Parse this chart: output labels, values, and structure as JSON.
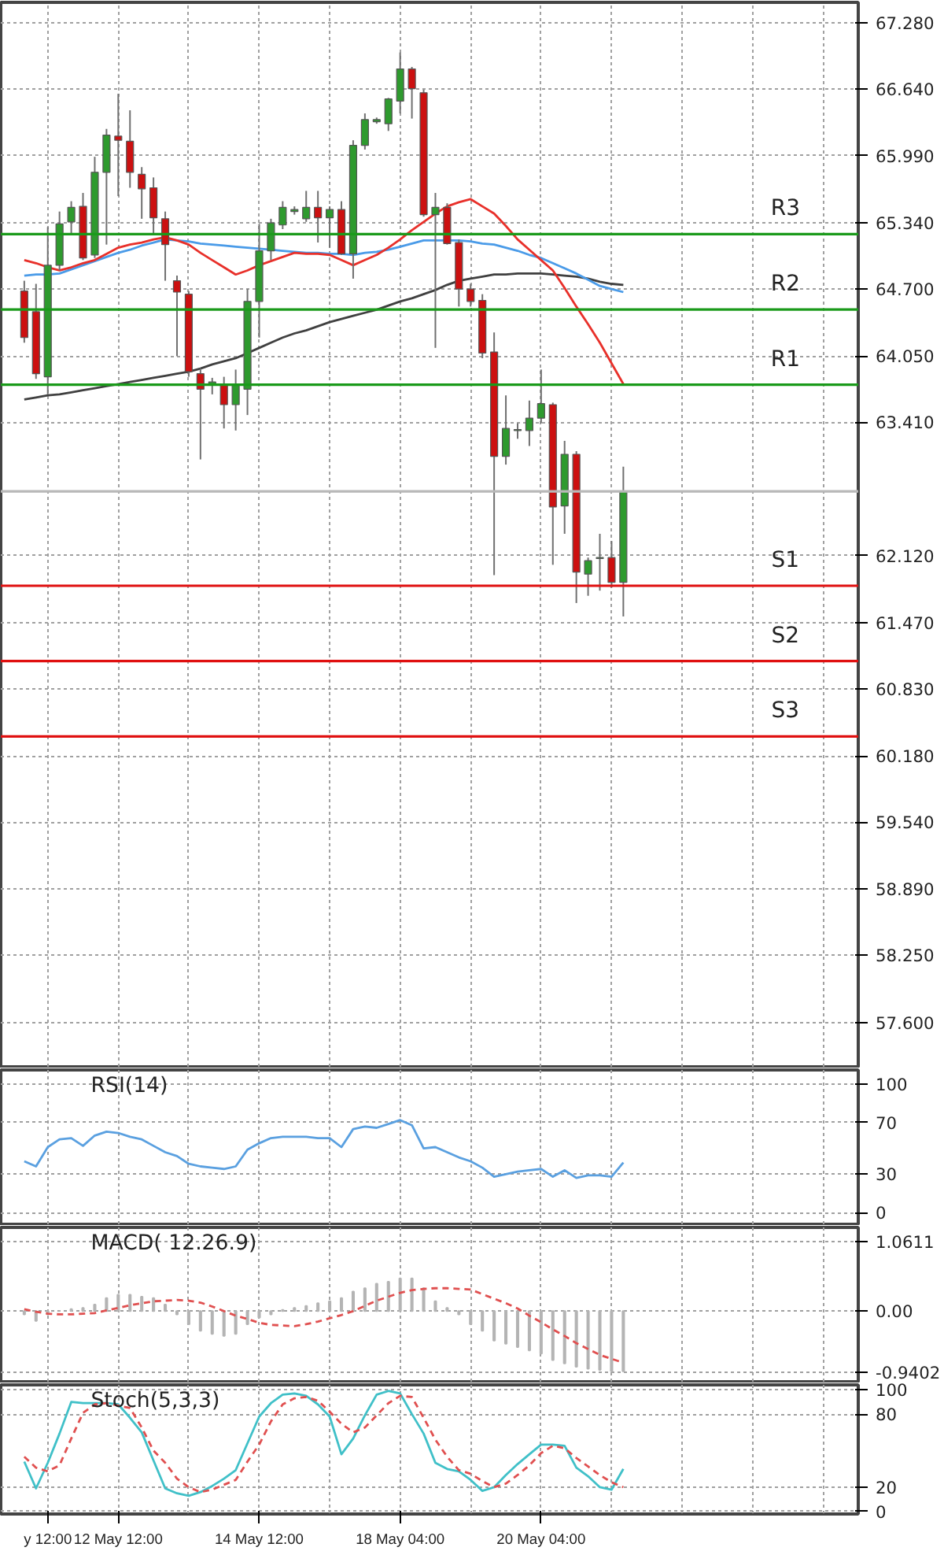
{
  "chart_data": [
    {
      "type": "candlestick",
      "categories": [
        null,
        null,
        null,
        null,
        null,
        null,
        null,
        null,
        null,
        null,
        null,
        null,
        null,
        null,
        null,
        null,
        null,
        null,
        null,
        null,
        null,
        null,
        null,
        null,
        null,
        null,
        null,
        null,
        null,
        null,
        null,
        null,
        null,
        null,
        null,
        null,
        null,
        null,
        null,
        null,
        null,
        null,
        null,
        null,
        null,
        null,
        null,
        null,
        null,
        null,
        null,
        null
      ],
      "ohlc": [
        [
          64.68,
          64.78,
          64.18,
          64.23
        ],
        [
          64.48,
          64.75,
          63.83,
          63.88
        ],
        [
          63.85,
          65.3,
          63.68,
          64.93
        ],
        [
          64.93,
          65.45,
          64.88,
          65.33
        ],
        [
          65.35,
          65.55,
          65.23,
          65.49
        ],
        [
          65.5,
          65.63,
          64.98,
          65.0
        ],
        [
          65.03,
          65.98,
          65.0,
          65.83
        ],
        [
          65.83,
          66.25,
          65.13,
          66.19
        ],
        [
          66.18,
          66.59,
          65.6,
          66.14
        ],
        [
          66.13,
          66.43,
          65.68,
          65.83
        ],
        [
          65.81,
          65.88,
          65.38,
          65.67
        ],
        [
          65.68,
          65.78,
          65.23,
          65.39
        ],
        [
          65.38,
          65.45,
          64.78,
          65.13
        ],
        [
          64.78,
          64.83,
          64.05,
          64.67
        ],
        [
          64.65,
          64.68,
          63.85,
          63.9
        ],
        [
          63.88,
          63.93,
          63.05,
          63.73
        ],
        [
          63.78,
          63.84,
          63.68,
          63.8
        ],
        [
          63.78,
          63.85,
          63.35,
          63.58
        ],
        [
          63.58,
          63.92,
          63.33,
          63.78
        ],
        [
          63.73,
          64.7,
          63.48,
          64.58
        ],
        [
          64.58,
          65.33,
          64.23,
          65.07
        ],
        [
          65.07,
          65.38,
          64.98,
          65.34
        ],
        [
          65.32,
          65.55,
          65.28,
          65.49
        ],
        [
          65.45,
          65.5,
          65.42,
          65.47
        ],
        [
          65.38,
          65.65,
          65.35,
          65.49
        ],
        [
          65.49,
          65.65,
          65.15,
          65.39
        ],
        [
          65.39,
          65.5,
          65.1,
          65.47
        ],
        [
          65.47,
          65.55,
          65.03,
          65.04
        ],
        [
          65.04,
          66.14,
          64.8,
          66.09
        ],
        [
          66.09,
          66.4,
          66.05,
          66.34
        ],
        [
          66.32,
          66.36,
          66.3,
          66.34
        ],
        [
          66.3,
          66.55,
          66.23,
          66.54
        ],
        [
          66.52,
          66.99,
          66.4,
          66.83
        ],
        [
          66.83,
          66.85,
          66.35,
          66.64
        ],
        [
          66.6,
          66.63,
          65.4,
          65.42
        ],
        [
          65.42,
          65.63,
          64.13,
          65.49
        ],
        [
          65.49,
          65.53,
          65.13,
          65.14
        ],
        [
          65.15,
          65.18,
          64.53,
          64.7
        ],
        [
          64.7,
          64.75,
          64.53,
          64.58
        ],
        [
          64.59,
          64.65,
          64.03,
          64.08
        ],
        [
          64.09,
          64.28,
          61.93,
          63.08
        ],
        [
          63.08,
          63.67,
          63.0,
          63.35
        ],
        [
          63.33,
          63.4,
          63.25,
          63.34
        ],
        [
          63.33,
          63.62,
          63.18,
          63.45
        ],
        [
          63.45,
          63.92,
          63.4,
          63.59
        ],
        [
          63.58,
          63.6,
          62.03,
          62.59
        ],
        [
          62.6,
          63.23,
          62.33,
          63.1
        ],
        [
          63.1,
          63.13,
          61.66,
          61.96
        ],
        [
          61.94,
          62.1,
          61.73,
          62.07
        ],
        [
          62.09,
          62.33,
          61.78,
          62.1
        ],
        [
          62.1,
          62.26,
          61.81,
          61.86
        ],
        [
          61.86,
          62.98,
          61.53,
          62.74
        ]
      ],
      "colors": [
        "#cc1010",
        "#cc1010",
        "#2e9a2e",
        "#2e9a2e",
        "#2e9a2e",
        "#cc1010",
        "#2e9a2e",
        "#2e9a2e",
        "#cc1010",
        "#cc1010",
        "#cc1010",
        "#cc1010",
        "#cc1010",
        "#cc1010",
        "#cc1010",
        "#cc1010",
        "#2e9a2e",
        "#cc1010",
        "#2e9a2e",
        "#2e9a2e",
        "#2e9a2e",
        "#2e9a2e",
        "#2e9a2e",
        "#2e9a2e",
        "#2e9a2e",
        "#cc1010",
        "#2e9a2e",
        "#cc1010",
        "#2e9a2e",
        "#2e9a2e",
        "#2e9a2e",
        "#2e9a2e",
        "#2e9a2e",
        "#cc1010",
        "#cc1010",
        "#2e9a2e",
        "#cc1010",
        "#cc1010",
        "#cc1010",
        "#cc1010",
        "#cc1010",
        "#2e9a2e",
        "#2e9a2e",
        "#2e9a2e",
        "#2e9a2e",
        "#cc1010",
        "#2e9a2e",
        "#cc1010",
        "#2e9a2e",
        "#2e9a2e",
        "#cc1010",
        "#2e9a2e"
      ],
      "series": [
        {
          "type": "line",
          "color": "#404040",
          "values": [
            63.63,
            63.65,
            63.67,
            63.68,
            63.7,
            63.72,
            63.74,
            63.76,
            63.78,
            63.8,
            63.82,
            63.84,
            63.86,
            63.88,
            63.9,
            63.93,
            63.97,
            64.0,
            64.03,
            64.08,
            64.13,
            64.18,
            64.23,
            64.27,
            64.3,
            64.34,
            64.38,
            64.41,
            64.44,
            64.47,
            64.5,
            64.54,
            64.58,
            64.61,
            64.65,
            64.69,
            64.74,
            64.78,
            64.8,
            64.82,
            64.84,
            64.84,
            64.85,
            64.85,
            64.85,
            64.84,
            64.83,
            64.82,
            64.8,
            64.77,
            64.75,
            64.74
          ]
        },
        {
          "type": "line",
          "color": "#4a9be8",
          "values": [
            64.83,
            64.84,
            64.84,
            64.85,
            64.89,
            64.93,
            64.97,
            65.01,
            65.05,
            65.08,
            65.12,
            65.15,
            65.18,
            65.17,
            65.16,
            65.14,
            65.13,
            65.12,
            65.11,
            65.1,
            65.09,
            65.08,
            65.07,
            65.06,
            65.05,
            65.05,
            65.04,
            65.04,
            65.03,
            65.05,
            65.06,
            65.08,
            65.11,
            65.14,
            65.17,
            65.17,
            65.17,
            65.17,
            65.16,
            65.14,
            65.13,
            65.1,
            65.07,
            65.03,
            65.0,
            64.95,
            64.9,
            64.85,
            64.79,
            64.73,
            64.7,
            64.67
          ]
        },
        {
          "type": "line",
          "color": "#e8302a",
          "values": [
            64.98,
            64.95,
            64.91,
            64.88,
            64.91,
            64.95,
            64.98,
            65.04,
            65.1,
            65.13,
            65.15,
            65.18,
            65.2,
            65.17,
            65.13,
            65.05,
            64.98,
            64.91,
            64.84,
            64.88,
            64.93,
            64.97,
            65.01,
            65.05,
            65.04,
            65.04,
            65.03,
            64.98,
            64.93,
            64.98,
            65.03,
            65.1,
            65.18,
            65.27,
            65.35,
            65.43,
            65.5,
            65.54,
            65.57,
            65.5,
            65.43,
            65.31,
            65.18,
            65.08,
            64.98,
            64.88,
            64.71,
            64.53,
            64.36,
            64.18,
            63.98,
            63.78
          ]
        }
      ],
      "ylim": [
        57.17,
        67.475
      ],
      "yticks": [
        {
          "value": 67.28,
          "label": "67.280"
        },
        {
          "value": 66.64,
          "label": "66.640"
        },
        {
          "value": 65.99,
          "label": "65.990"
        },
        {
          "value": 65.34,
          "label": "65.340"
        },
        {
          "value": 64.7,
          "label": "64.700"
        },
        {
          "value": 64.05,
          "label": "64.050"
        },
        {
          "value": 63.41,
          "label": "63.410"
        },
        {
          "value": 62.12,
          "label": "62.120"
        },
        {
          "value": 61.47,
          "label": "61.470"
        },
        {
          "value": 60.83,
          "label": "60.830"
        },
        {
          "value": 60.18,
          "label": "60.180"
        },
        {
          "value": 59.54,
          "label": "59.540"
        },
        {
          "value": 58.89,
          "label": "58.890"
        },
        {
          "value": 58.25,
          "label": "58.250"
        },
        {
          "value": 57.6,
          "label": "57.600"
        }
      ],
      "ref_lines": [
        {
          "axis": "y",
          "value": 65.232,
          "label": "R3",
          "color": "#1a9a1a"
        },
        {
          "axis": "y",
          "value": 64.502,
          "label": "R2",
          "color": "#1a9a1a"
        },
        {
          "axis": "y",
          "value": 63.773,
          "label": "R1",
          "color": "#1a9a1a"
        },
        {
          "axis": "y",
          "value": 62.74,
          "label": null,
          "color": "#b8b8b8"
        },
        {
          "axis": "y",
          "value": 61.827,
          "label": "S1",
          "color": "#e01010"
        },
        {
          "axis": "y",
          "value": 61.098,
          "label": "S2",
          "color": "#e01010"
        },
        {
          "axis": "y",
          "value": 60.368,
          "label": "S3",
          "color": "#e01010"
        }
      ],
      "grid": true,
      "tick_labels": "y"
    },
    {
      "type": "line",
      "title": "RSI(14)",
      "categories": [
        null,
        null,
        null,
        null,
        null,
        null,
        null,
        null,
        null,
        null,
        null,
        null,
        null,
        null,
        null,
        null,
        null,
        null,
        null,
        null,
        null,
        null,
        null,
        null,
        null,
        null,
        null,
        null,
        null,
        null,
        null,
        null,
        null,
        null,
        null,
        null,
        null,
        null,
        null,
        null,
        null,
        null,
        null,
        null,
        null,
        null,
        null,
        null,
        null,
        null,
        null,
        null
      ],
      "series": [
        {
          "color": "#5aa0e0",
          "values": [
            40,
            36,
            51,
            57,
            58,
            52,
            60,
            63,
            62,
            59,
            57,
            52,
            47,
            44,
            38,
            36,
            35,
            34,
            36,
            49,
            54,
            58,
            59,
            59,
            59,
            58,
            58,
            51,
            65,
            67,
            66,
            69,
            72,
            68,
            50,
            51,
            47,
            43,
            40,
            35,
            28,
            30,
            32,
            33,
            34,
            28,
            33,
            27,
            29,
            29,
            28,
            39
          ]
        }
      ],
      "ylim": [
        -9,
        111
      ],
      "yticks": [
        100,
        70,
        30,
        0
      ],
      "grid": true,
      "tick_labels": "y"
    },
    {
      "type": "bar",
      "title": "MACD( 12.26.9)",
      "categories": [
        null,
        null,
        null,
        null,
        null,
        null,
        null,
        null,
        null,
        null,
        null,
        null,
        null,
        null,
        null,
        null,
        null,
        null,
        null,
        null,
        null,
        null,
        null,
        null,
        null,
        null,
        null,
        null,
        null,
        null,
        null,
        null,
        null,
        null,
        null,
        null,
        null,
        null,
        null,
        null,
        null,
        null,
        null,
        null,
        null,
        null,
        null,
        null,
        null,
        null,
        null,
        null
      ],
      "series": [
        {
          "type": "bar",
          "color": "#b4b4b4",
          "values": [
            -0.05,
            -0.15,
            -0.05,
            0.0,
            0.03,
            0.05,
            0.1,
            0.2,
            0.25,
            0.25,
            0.22,
            0.2,
            0.1,
            -0.05,
            -0.2,
            -0.3,
            -0.35,
            -0.38,
            -0.35,
            -0.2,
            -0.1,
            -0.05,
            0.02,
            0.05,
            0.08,
            0.12,
            0.15,
            0.2,
            0.3,
            0.35,
            0.42,
            0.45,
            0.5,
            0.5,
            0.35,
            0.15,
            0.05,
            -0.05,
            -0.2,
            -0.3,
            -0.45,
            -0.5,
            -0.55,
            -0.6,
            -0.65,
            -0.75,
            -0.8,
            -0.85,
            -0.88,
            -0.9,
            -0.92,
            -0.92
          ]
        },
        {
          "type": "line",
          "color": "#e05050",
          "line_style": "dashed",
          "values": [
            0.03,
            -0.01,
            -0.04,
            -0.05,
            -0.05,
            -0.04,
            -0.03,
            0.01,
            0.05,
            0.09,
            0.12,
            0.15,
            0.16,
            0.17,
            0.16,
            0.13,
            0.07,
            0.0,
            -0.07,
            -0.12,
            -0.18,
            -0.21,
            -0.22,
            -0.23,
            -0.2,
            -0.16,
            -0.11,
            -0.06,
            0.0,
            0.08,
            0.16,
            0.22,
            0.28,
            0.32,
            0.34,
            0.35,
            0.35,
            0.34,
            0.33,
            0.26,
            0.19,
            0.12,
            0.04,
            -0.07,
            -0.17,
            -0.28,
            -0.38,
            -0.49,
            -0.58,
            -0.67,
            -0.73,
            -0.79
          ]
        }
      ],
      "ylim": [
        -1.08,
        1.28
      ],
      "yticks": [
        1.0611,
        {
          "value": 0,
          "label": "0.00"
        },
        -0.9402
      ],
      "grid": true,
      "tick_labels": "y"
    },
    {
      "type": "line",
      "title": "Stoch(5,3,3)",
      "categories": [
        null,
        null,
        "y 12:00",
        null,
        null,
        null,
        null,
        null,
        "12 May 12:00",
        null,
        null,
        null,
        null,
        null,
        null,
        null,
        null,
        null,
        null,
        null,
        "14 May 12:00",
        null,
        null,
        null,
        null,
        null,
        null,
        null,
        null,
        null,
        null,
        null,
        "18 May 04:00",
        null,
        null,
        null,
        null,
        null,
        null,
        null,
        null,
        null,
        null,
        null,
        "20 May 04:00",
        null,
        null,
        null,
        null,
        null,
        null,
        null
      ],
      "series": [
        {
          "color": "#40c0c8",
          "values": [
            41,
            19,
            40,
            64,
            90,
            89,
            89,
            89,
            88,
            77,
            65,
            42,
            19,
            15,
            13,
            16,
            21,
            27,
            34,
            56,
            78,
            89,
            96,
            97,
            95,
            88,
            78,
            47,
            60,
            79,
            96,
            99,
            97,
            80,
            64,
            40,
            35,
            33,
            26,
            17,
            20,
            30,
            39,
            47,
            55,
            55,
            54,
            36,
            29,
            20,
            18,
            35
          ]
        },
        {
          "color": "#e05050",
          "line_style": "dashed",
          "values": [
            45,
            36,
            33,
            38,
            60,
            81,
            88,
            89,
            87,
            85,
            69,
            50,
            40,
            27,
            20,
            16,
            18,
            22,
            26,
            41,
            55,
            74,
            88,
            93,
            94,
            91,
            82,
            72,
            65,
            69,
            79,
            89,
            95,
            94,
            77,
            59,
            45,
            34,
            31,
            25,
            20,
            23,
            30,
            38,
            48,
            54,
            52,
            44,
            37,
            30,
            24,
            20
          ]
        }
      ],
      "ylim": [
        -2,
        104
      ],
      "yticks": [
        100,
        80,
        20,
        0
      ],
      "grid": true
    }
  ]
}
